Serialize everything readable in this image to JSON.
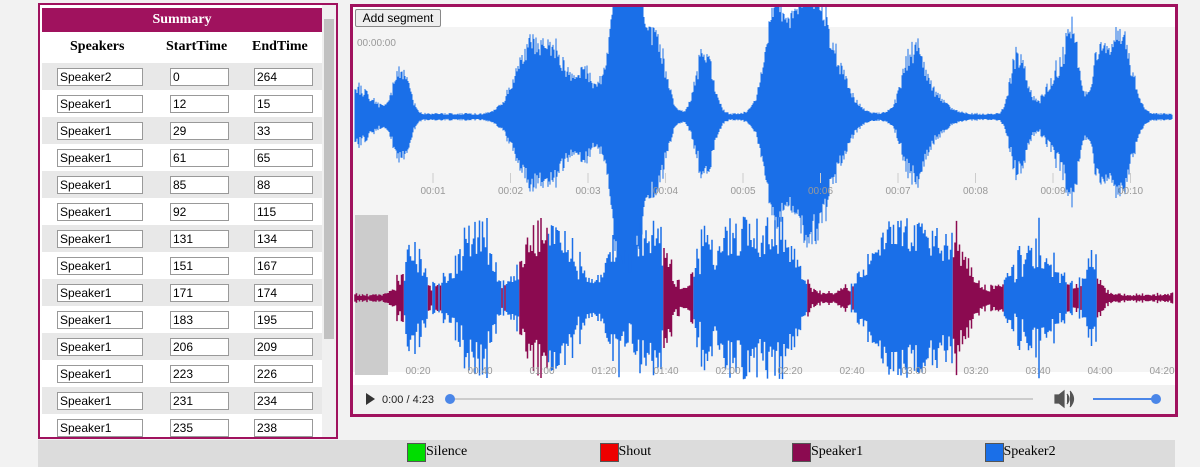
{
  "summary": {
    "title": "Summary",
    "columns": [
      "Speakers",
      "StartTime",
      "EndTime"
    ],
    "rows": [
      [
        "Speaker2",
        0,
        264
      ],
      [
        "Speaker1",
        12,
        15
      ],
      [
        "Speaker1",
        29,
        33
      ],
      [
        "Speaker1",
        61,
        65
      ],
      [
        "Speaker1",
        85,
        88
      ],
      [
        "Speaker1",
        92,
        115
      ],
      [
        "Speaker1",
        131,
        134
      ],
      [
        "Speaker1",
        151,
        167
      ],
      [
        "Speaker1",
        171,
        174
      ],
      [
        "Speaker1",
        183,
        195
      ],
      [
        "Speaker1",
        206,
        209
      ],
      [
        "Speaker1",
        223,
        226
      ],
      [
        "Speaker1",
        231,
        234
      ],
      [
        "Speaker1",
        235,
        238
      ]
    ]
  },
  "editor": {
    "add_button": "Add segment",
    "top_time_labels": [
      "00:00:00",
      "00:01",
      "00:02",
      "00:03",
      "00:04",
      "00:05",
      "00:06",
      "00:07",
      "00:08",
      "00:09",
      "00:10"
    ],
    "overview_time_labels": [
      "00:20",
      "00:40",
      "01:00",
      "01:20",
      "01:40",
      "02:00",
      "02:20",
      "02:40",
      "03:00",
      "03:20",
      "03:40",
      "04:00",
      "04:20"
    ],
    "player_time": "0:00 / 4:23"
  },
  "legend": [
    {
      "label": "Silence",
      "color": "#00dd00"
    },
    {
      "label": "Shout",
      "color": "#ee0000"
    },
    {
      "label": "Speaker1",
      "color": "#8b0a50"
    },
    {
      "label": "Speaker2",
      "color": "#1a6fe8"
    }
  ]
}
